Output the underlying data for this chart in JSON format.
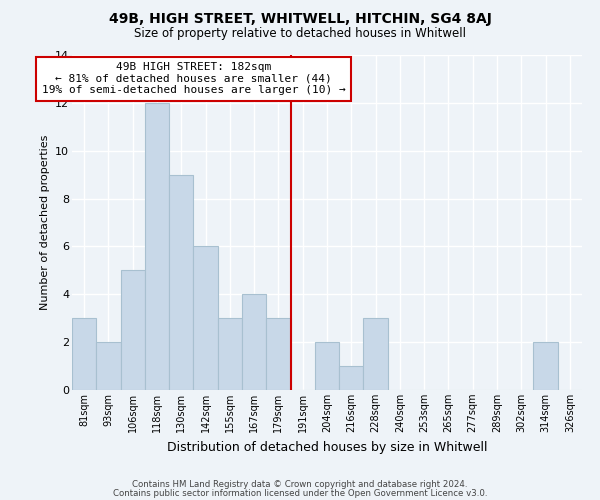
{
  "title": "49B, HIGH STREET, WHITWELL, HITCHIN, SG4 8AJ",
  "subtitle": "Size of property relative to detached houses in Whitwell",
  "xlabel": "Distribution of detached houses by size in Whitwell",
  "ylabel": "Number of detached properties",
  "bin_labels": [
    "81sqm",
    "93sqm",
    "106sqm",
    "118sqm",
    "130sqm",
    "142sqm",
    "155sqm",
    "167sqm",
    "179sqm",
    "191sqm",
    "204sqm",
    "216sqm",
    "228sqm",
    "240sqm",
    "253sqm",
    "265sqm",
    "277sqm",
    "289sqm",
    "302sqm",
    "314sqm",
    "326sqm"
  ],
  "bar_heights": [
    3,
    2,
    5,
    12,
    9,
    6,
    3,
    4,
    3,
    0,
    2,
    1,
    3,
    0,
    0,
    0,
    0,
    0,
    0,
    2,
    0
  ],
  "bar_color": "#c8d8e8",
  "bar_edge_color": "#a8c0d0",
  "vline_color": "#cc0000",
  "annotation_title": "49B HIGH STREET: 182sqm",
  "annotation_line1": "← 81% of detached houses are smaller (44)",
  "annotation_line2": "19% of semi-detached houses are larger (10) →",
  "annotation_box_color": "#ffffff",
  "annotation_box_edge": "#cc0000",
  "ylim": [
    0,
    14
  ],
  "yticks": [
    0,
    2,
    4,
    6,
    8,
    10,
    12,
    14
  ],
  "footer1": "Contains HM Land Registry data © Crown copyright and database right 2024.",
  "footer2": "Contains public sector information licensed under the Open Government Licence v3.0.",
  "bg_color": "#eef3f8",
  "grid_color": "#ffffff"
}
